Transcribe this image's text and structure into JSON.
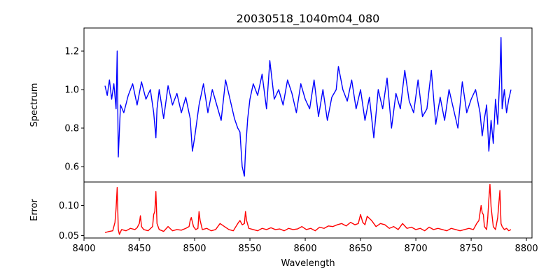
{
  "chart_data": {
    "type": "line",
    "title": "20030518_1040m04_080",
    "xlabel": "Wavelength",
    "xlim": [
      8400,
      8805
    ],
    "xticks": [
      8400,
      8450,
      8500,
      8550,
      8600,
      8650,
      8700,
      8750,
      8800
    ],
    "grid": false,
    "panels": [
      {
        "name": "spectrum",
        "ylabel": "Spectrum",
        "ylim": [
          0.52,
          1.32
        ],
        "yticks": [
          0.6,
          0.8,
          1.0,
          1.2
        ],
        "ytick_labels": [
          "0.6",
          "0.8",
          "1.0",
          "1.2"
        ],
        "series": [
          {
            "color": "#0000ff",
            "x": [
              8419,
              8421,
              8423,
              8425,
              8427,
              8429,
              8430,
              8431,
              8433,
              8436,
              8440,
              8444,
              8448,
              8452,
              8456,
              8460,
              8463,
              8465,
              8466,
              8468,
              8472,
              8476,
              8480,
              8484,
              8488,
              8492,
              8496,
              8498,
              8500,
              8504,
              8508,
              8512,
              8516,
              8520,
              8524,
              8528,
              8532,
              8536,
              8539,
              8541,
              8543,
              8545,
              8546,
              8548,
              8550,
              8553,
              8557,
              8561,
              8565,
              8568,
              8572,
              8576,
              8580,
              8584,
              8588,
              8592,
              8596,
              8600,
              8604,
              8608,
              8612,
              8616,
              8620,
              8624,
              8628,
              8630,
              8634,
              8638,
              8642,
              8646,
              8650,
              8654,
              8658,
              8662,
              8666,
              8670,
              8674,
              8678,
              8682,
              8686,
              8690,
              8694,
              8698,
              8702,
              8706,
              8710,
              8714,
              8718,
              8722,
              8726,
              8730,
              8734,
              8738,
              8742,
              8746,
              8750,
              8754,
              8758,
              8760,
              8762,
              8764,
              8766,
              8768,
              8770,
              8772,
              8774,
              8776,
              8777,
              8778,
              8780,
              8782,
              8784,
              8786
            ],
            "y": [
              1.02,
              0.97,
              1.05,
              0.95,
              1.03,
              0.9,
              1.2,
              0.65,
              0.92,
              0.88,
              0.97,
              1.03,
              0.92,
              1.04,
              0.95,
              1.0,
              0.88,
              0.75,
              0.9,
              1.0,
              0.85,
              1.02,
              0.92,
              0.98,
              0.88,
              0.96,
              0.85,
              0.68,
              0.75,
              0.92,
              1.03,
              0.88,
              1.0,
              0.92,
              0.84,
              1.05,
              0.95,
              0.85,
              0.8,
              0.78,
              0.6,
              0.55,
              0.68,
              0.85,
              0.95,
              1.03,
              0.97,
              1.08,
              0.9,
              1.15,
              0.95,
              1.0,
              0.92,
              1.05,
              0.98,
              0.88,
              1.03,
              0.95,
              0.9,
              1.05,
              0.86,
              1.0,
              0.84,
              0.96,
              1.0,
              1.12,
              1.0,
              0.94,
              1.05,
              0.9,
              1.0,
              0.84,
              0.96,
              0.75,
              1.0,
              0.9,
              1.06,
              0.8,
              0.98,
              0.9,
              1.1,
              0.94,
              0.88,
              1.05,
              0.86,
              0.9,
              1.1,
              0.82,
              0.96,
              0.84,
              1.0,
              0.9,
              0.8,
              1.04,
              0.88,
              0.95,
              1.0,
              0.88,
              0.76,
              0.85,
              0.92,
              0.68,
              0.84,
              0.72,
              0.95,
              0.82,
              1.08,
              1.27,
              0.9,
              1.0,
              0.88,
              0.95,
              1.0
            ]
          }
        ]
      },
      {
        "name": "error",
        "ylabel": "Error",
        "ylim": [
          0.046,
          0.139
        ],
        "yticks": [
          0.05,
          0.1
        ],
        "ytick_labels": [
          "0.05",
          "0.10"
        ],
        "series": [
          {
            "color": "#ff0000",
            "x": [
              8419,
              8423,
              8426,
              8428,
              8429,
              8430,
              8431,
              8432,
              8434,
              8438,
              8442,
              8446,
              8448,
              8450,
              8451,
              8452,
              8454,
              8458,
              8462,
              8463,
              8464,
              8465,
              8466,
              8468,
              8472,
              8476,
              8480,
              8484,
              8488,
              8492,
              8495,
              8496,
              8497,
              8499,
              8501,
              8503,
              8504,
              8505,
              8507,
              8511,
              8515,
              8519,
              8523,
              8527,
              8531,
              8535,
              8539,
              8541,
              8543,
              8545,
              8546,
              8547,
              8549,
              8553,
              8557,
              8561,
              8565,
              8569,
              8573,
              8577,
              8581,
              8585,
              8589,
              8593,
              8597,
              8601,
              8605,
              8609,
              8613,
              8617,
              8621,
              8625,
              8629,
              8633,
              8637,
              8641,
              8645,
              8648,
              8650,
              8652,
              8654,
              8656,
              8660,
              8664,
              8668,
              8672,
              8676,
              8680,
              8684,
              8688,
              8692,
              8696,
              8700,
              8704,
              8708,
              8712,
              8716,
              8720,
              8724,
              8728,
              8732,
              8736,
              8740,
              8744,
              8748,
              8752,
              8755,
              8757,
              8759,
              8760,
              8761,
              8762,
              8764,
              8765,
              8766,
              8767,
              8768,
              8770,
              8772,
              8774,
              8776,
              8777,
              8778,
              8780,
              8782,
              8784,
              8786
            ],
            "y": [
              0.055,
              0.057,
              0.058,
              0.072,
              0.095,
              0.13,
              0.06,
              0.052,
              0.06,
              0.058,
              0.062,
              0.06,
              0.063,
              0.07,
              0.083,
              0.065,
              0.06,
              0.058,
              0.065,
              0.085,
              0.09,
              0.123,
              0.07,
              0.06,
              0.057,
              0.065,
              0.058,
              0.06,
              0.059,
              0.062,
              0.065,
              0.075,
              0.08,
              0.065,
              0.06,
              0.062,
              0.09,
              0.075,
              0.06,
              0.062,
              0.058,
              0.06,
              0.07,
              0.065,
              0.06,
              0.058,
              0.07,
              0.075,
              0.068,
              0.07,
              0.09,
              0.075,
              0.062,
              0.06,
              0.058,
              0.062,
              0.06,
              0.063,
              0.06,
              0.061,
              0.058,
              0.062,
              0.06,
              0.061,
              0.065,
              0.06,
              0.062,
              0.058,
              0.064,
              0.062,
              0.066,
              0.065,
              0.068,
              0.07,
              0.066,
              0.072,
              0.068,
              0.07,
              0.085,
              0.072,
              0.068,
              0.082,
              0.075,
              0.065,
              0.07,
              0.068,
              0.062,
              0.065,
              0.06,
              0.07,
              0.062,
              0.064,
              0.06,
              0.062,
              0.058,
              0.064,
              0.06,
              0.062,
              0.06,
              0.058,
              0.062,
              0.06,
              0.058,
              0.06,
              0.062,
              0.06,
              0.07,
              0.075,
              0.1,
              0.088,
              0.085,
              0.065,
              0.06,
              0.08,
              0.11,
              0.135,
              0.098,
              0.065,
              0.06,
              0.08,
              0.125,
              0.07,
              0.065,
              0.06,
              0.062,
              0.058,
              0.06
            ]
          }
        ]
      }
    ]
  }
}
